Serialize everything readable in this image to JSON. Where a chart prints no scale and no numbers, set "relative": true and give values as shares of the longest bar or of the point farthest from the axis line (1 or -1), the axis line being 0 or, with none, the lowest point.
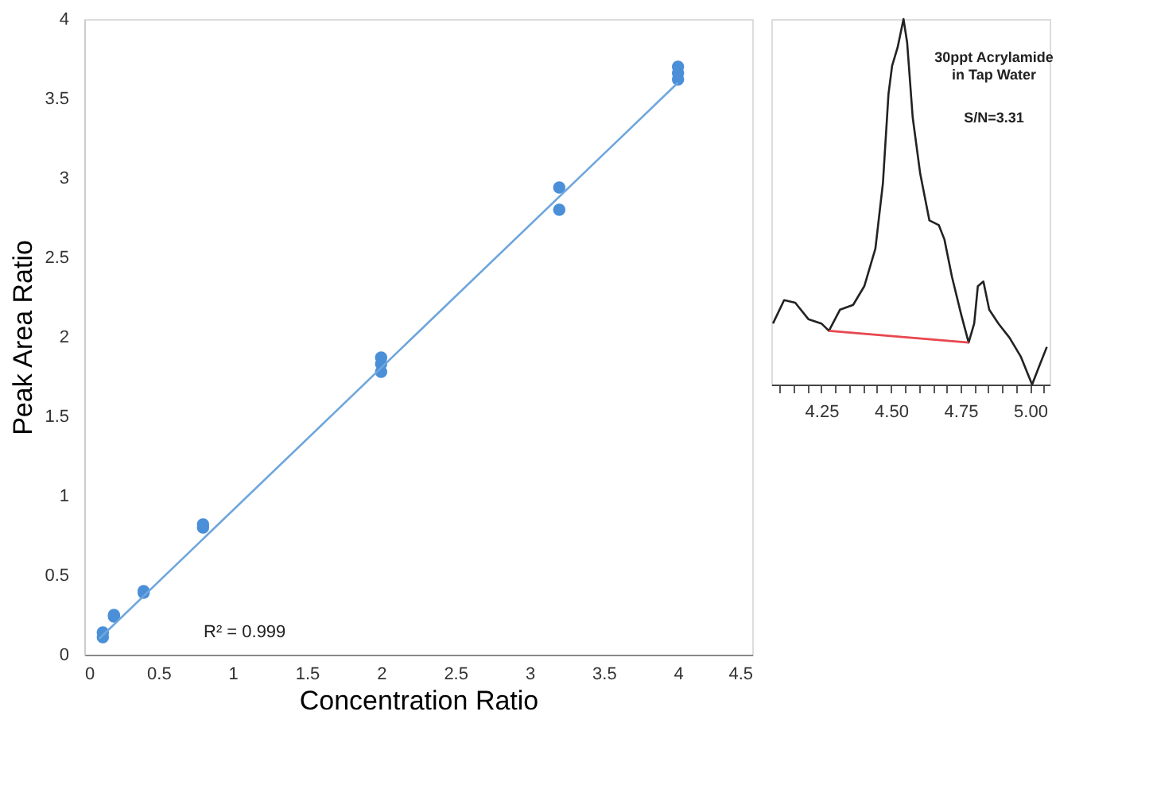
{
  "chart_data": [
    {
      "type": "scatter",
      "xlabel": "Concentration Ratio",
      "ylabel": "Peak Area Ratio",
      "xlim": [
        0,
        4.5
      ],
      "xticks": [
        0,
        0.5,
        1,
        1.5,
        2,
        2.5,
        3,
        3.5,
        4,
        4.5
      ],
      "ylim": [
        0,
        4
      ],
      "yticks": [
        0,
        0.5,
        1,
        1.5,
        2,
        2.5,
        3,
        3.5,
        4
      ],
      "grid": false,
      "series": [
        {
          "marker": "circle",
          "color": "#4a8fd8",
          "x": [
            0.125,
            0.125,
            0.2,
            0.2,
            0.4,
            0.4,
            0.8,
            0.8,
            2,
            2,
            2,
            3.2,
            3.2,
            4,
            4,
            4
          ],
          "values": [
            0.11,
            0.14,
            0.24,
            0.25,
            0.39,
            0.4,
            0.8,
            0.82,
            1.78,
            1.83,
            1.87,
            2.8,
            2.94,
            3.62,
            3.66,
            3.7
          ]
        },
        {
          "type": "line",
          "color": "#6fa6dc",
          "x": [
            0.1,
            4
          ],
          "values": [
            0.1,
            3.6
          ]
        }
      ],
      "annotations": [
        "R² = 0.999"
      ]
    },
    {
      "type": "line",
      "relative": true,
      "xlim": [
        4.07,
        5.07
      ],
      "xticks": [
        {
          "value": 4.1,
          "label": null
        },
        {
          "value": 4.15,
          "label": null
        },
        {
          "value": 4.2,
          "label": null
        },
        4.25,
        {
          "value": 4.3,
          "label": null
        },
        {
          "value": 4.35,
          "label": null
        },
        {
          "value": 4.4,
          "label": null
        },
        {
          "value": 4.45,
          "label": null
        },
        {
          "value": 4.5,
          "label": "4.50"
        },
        {
          "value": 4.55,
          "label": null
        },
        {
          "value": 4.6,
          "label": null
        },
        {
          "value": 4.65,
          "label": null
        },
        {
          "value": 4.7,
          "label": null
        },
        4.75,
        {
          "value": 4.8,
          "label": null
        },
        {
          "value": 4.85,
          "label": null
        },
        {
          "value": 4.9,
          "label": null
        },
        {
          "value": 4.95,
          "label": null
        },
        {
          "value": 5.0,
          "label": "5.00"
        },
        {
          "value": 5.05,
          "label": null
        }
      ],
      "tick_labels": "x",
      "grid": false,
      "series": [
        {
          "color": "#222222",
          "x": [
            4.076,
            4.116,
            4.156,
            4.203,
            4.25,
            4.277,
            4.317,
            4.364,
            4.404,
            4.444,
            4.471,
            4.491,
            4.504,
            4.524,
            4.545,
            4.558,
            4.578,
            4.605,
            4.638,
            4.672,
            4.692,
            4.719,
            4.752,
            4.779,
            4.799,
            4.812,
            4.832,
            4.853,
            4.886,
            4.926,
            4.966,
            5.007,
            5.033,
            5.06
          ],
          "values": [
            0.167,
            0.231,
            0.224,
            0.179,
            0.167,
            0.147,
            0.205,
            0.218,
            0.269,
            0.372,
            0.551,
            0.795,
            0.872,
            0.923,
            1.0,
            0.936,
            0.731,
            0.577,
            0.449,
            0.436,
            0.397,
            0.295,
            0.192,
            0.115,
            0.167,
            0.269,
            0.282,
            0.205,
            0.167,
            0.128,
            0.077,
            0.0,
            0.051,
            0.103
          ]
        },
        {
          "color": "#e8474f",
          "x": [
            4.277,
            4.779
          ],
          "values": [
            0.147,
            0.115
          ]
        }
      ],
      "annotations": [
        "30ppt Acrylamide\nin Tap Water",
        "S/N=3.31"
      ]
    }
  ]
}
